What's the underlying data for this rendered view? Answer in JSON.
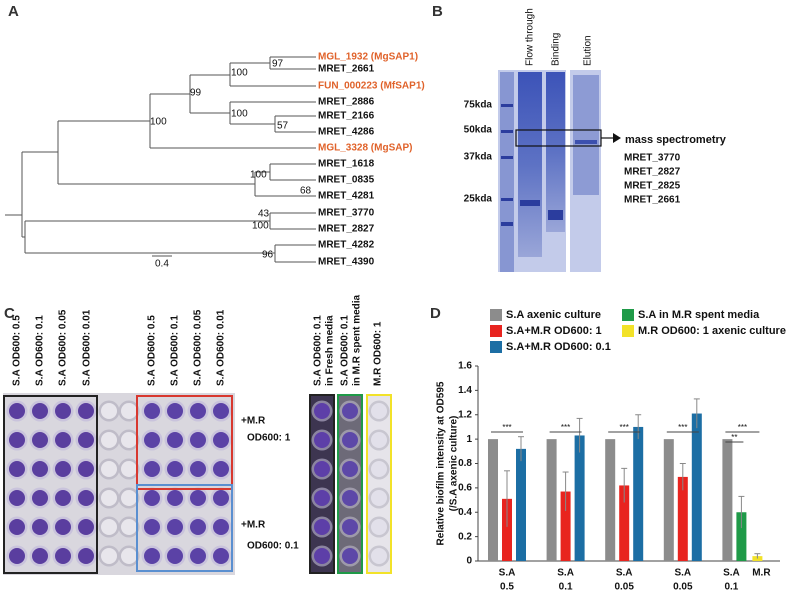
{
  "panel_a": {
    "label": "A",
    "leaves": [
      {
        "name": "MGL_1932 (MgSAP1)",
        "color": "#e0622a"
      },
      {
        "name": "MRET_2661",
        "color": "#111111"
      },
      {
        "name": "FUN_000223 (MfSAP1)",
        "color": "#e0622a"
      },
      {
        "name": "MRET_2886",
        "color": "#111111"
      },
      {
        "name": "MRET_2166",
        "color": "#111111"
      },
      {
        "name": "MRET_4286",
        "color": "#111111"
      },
      {
        "name": "MGL_3328 (MgSAP)",
        "color": "#e0622a"
      },
      {
        "name": "MRET_1618",
        "color": "#111111"
      },
      {
        "name": "MRET_0835",
        "color": "#111111"
      },
      {
        "name": "MRET_4281",
        "color": "#111111"
      },
      {
        "name": "MRET_3770",
        "color": "#111111"
      },
      {
        "name": "MRET_2827",
        "color": "#111111"
      },
      {
        "name": "MRET_4282",
        "color": "#111111"
      },
      {
        "name": "MRET_4390",
        "color": "#111111"
      }
    ],
    "bootstrap": [
      97,
      100,
      99,
      100,
      57,
      100,
      100,
      68,
      43,
      100,
      96
    ],
    "scale": "0.4"
  },
  "panel_b": {
    "label": "B",
    "lanes": [
      "Flow through",
      "Binding",
      "Elution"
    ],
    "markers": [
      "75kda",
      "50kda",
      "37kda",
      "25kda"
    ],
    "arrow_label": "mass spectrometry",
    "proteins": [
      "MRET_3770",
      "MRET_2827",
      "MRET_2825",
      "MRET_2661"
    ]
  },
  "panel_c": {
    "label": "C",
    "columns": [
      "S.A OD600: 0.5",
      "S.A OD600: 0.1",
      "S.A OD600: 0.05",
      "S.A OD600: 0.01",
      "S.A OD600: 0.5",
      "S.A OD600: 0.1",
      "S.A OD600: 0.05",
      "S.A OD600: 0.01"
    ],
    "controls": [
      [
        "S.A OD600: 0.1",
        "in Fresh media"
      ],
      [
        "S.A OD600: 0.1",
        "in M.R spent media"
      ],
      [
        "M.R OD600: 1"
      ]
    ],
    "groups": [
      [
        "+M.R",
        "OD600: 1"
      ],
      [
        "+M.R",
        "OD600: 0.1"
      ]
    ]
  },
  "chart_data": {
    "type": "bar",
    "label": "D",
    "ylabel": "Relative biofilm intensity at OD595",
    "ylabel_sub": "(/S.A axenic culture)",
    "categories": [
      [
        "S.A",
        "0.5"
      ],
      [
        "S.A",
        "0.1"
      ],
      [
        "S.A",
        "0.05"
      ],
      [
        "S.A",
        "0.05"
      ],
      [
        "S.A",
        "0.1"
      ]
    ],
    "bar_label": "M.R",
    "ylim": [
      0,
      1.6
    ],
    "yticks": [
      0,
      0.2,
      0.4,
      0.6,
      0.8,
      1,
      1.2,
      1.4,
      1.6
    ],
    "series": [
      {
        "name": "S.A axenic culture",
        "color": "#8c8c8c",
        "values": [
          1,
          1,
          1,
          1,
          1
        ],
        "errors": [
          null,
          null,
          null,
          null,
          null
        ]
      },
      {
        "name": "S.A+M.R OD600: 1",
        "color": "#e8241f",
        "values": [
          0.51,
          0.57,
          0.62,
          0.69,
          null
        ],
        "errors": [
          0.23,
          0.16,
          0.14,
          0.11,
          null
        ]
      },
      {
        "name": "S.A+M.R OD600: 0.1",
        "color": "#1c6ea4",
        "values": [
          0.92,
          1.03,
          1.1,
          1.21,
          null
        ],
        "errors": [
          0.1,
          0.14,
          0.1,
          0.12,
          null
        ]
      },
      {
        "name": "S.A in M.R spent media",
        "color": "#1f9a48",
        "values": [
          null,
          null,
          null,
          null,
          0.4
        ],
        "errors": [
          null,
          null,
          null,
          null,
          0.13
        ]
      },
      {
        "name": "M.R OD600: 1 axenic culture",
        "color": "#f2e229",
        "values": [
          null,
          null,
          null,
          null,
          0.04
        ],
        "errors": [
          null,
          null,
          null,
          null,
          0.02
        ]
      }
    ],
    "significance": [
      [
        "***"
      ],
      [
        "***"
      ],
      [
        "***"
      ],
      [
        "***"
      ],
      [
        "***",
        "**"
      ]
    ]
  }
}
